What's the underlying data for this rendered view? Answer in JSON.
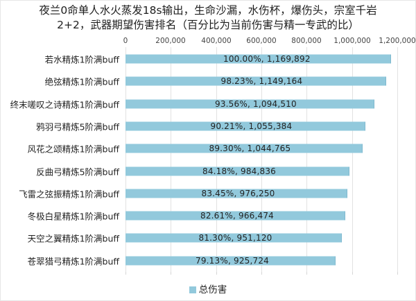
{
  "chart_data": {
    "type": "bar",
    "orientation": "horizontal",
    "title": "夜兰0命单人水火蒸发18s输出，生命沙漏，水伤杯，爆伤头，宗室千岩 2+2，武器期望伤害排名（百分比为当前伤害与精一专武的比）",
    "title_lines": [
      "夜兰0命单人水火蒸发18s输出，生命沙漏，水伤杯，爆伤头，宗室千岩",
      "2+2，武器期望伤害排名（百分比为当前伤害与精一专武的比）"
    ],
    "xlabel": "",
    "ylabel": "",
    "xlim": [
      0,
      1200000
    ],
    "x_tick_values": [
      0,
      200000,
      400000,
      600000,
      800000,
      1000000,
      1200000
    ],
    "x_tick_labels": [
      "0",
      "200,000",
      "400,000",
      "600,000",
      "800,000",
      "1,000,000",
      "1,200,000"
    ],
    "x_axis_position": "top",
    "grid": true,
    "legend_position": "bottom",
    "categories": [
      "若水精炼1阶满buff",
      "绝弦精炼1阶满buff",
      "终末嗟叹之诗精炼1阶满buff",
      "鸦羽弓精炼5阶满buff",
      "风花之颂精炼1阶满buff",
      "反曲弓精炼5阶满buff",
      "飞雷之弦振精炼1阶满buff",
      "冬极白星精炼1阶满buff",
      "天空之翼精炼1阶满buff",
      "苍翠猎弓精炼1阶满buff"
    ],
    "series": [
      {
        "name": "总伤害",
        "color": "#92c9dc",
        "values": [
          1169892,
          1149164,
          1094510,
          1055384,
          1044765,
          984836,
          976250,
          966474,
          951120,
          925724
        ],
        "percentages": [
          "100.00%",
          "98.23%",
          "93.56%",
          "90.21%",
          "89.30%",
          "84.18%",
          "83.45%",
          "82.61%",
          "81.30%",
          "79.13%"
        ],
        "data_labels": [
          "100.00%, 1,169,892",
          "98.23%, 1,149,164",
          "93.56%, 1,094,510",
          "90.21%, 1,055,384",
          "89.30%, 1,044,765",
          "84.18%, 984,836",
          "83.45%, 976,250",
          "82.61%, 966,474",
          "81.30%, 951,120",
          "79.13%, 925,724"
        ]
      }
    ]
  },
  "colors": {
    "bar": "#92c9dc",
    "bar_edge": "#7fb9cf",
    "grid": "#e2e2e2"
  },
  "legend": {
    "items": [
      {
        "label": "总伤害",
        "color": "#92c9dc"
      }
    ]
  }
}
